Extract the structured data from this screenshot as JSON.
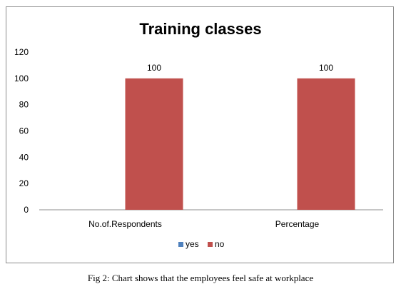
{
  "chart_data": {
    "type": "bar",
    "title": "Training classes",
    "categories": [
      "No.of.Respondents",
      "Percentage"
    ],
    "series": [
      {
        "name": "yes",
        "values": [
          0,
          0
        ],
        "color": "#4f81bd"
      },
      {
        "name": "no",
        "values": [
          100,
          100
        ],
        "color": "#c0504d"
      }
    ],
    "ylim": [
      0,
      120
    ],
    "yticks": [
      0,
      20,
      40,
      60,
      80,
      100,
      120
    ],
    "data_labels": [
      "100",
      "100"
    ],
    "legend": "bottom",
    "grid": false
  },
  "caption": "Fig 2:  Chart shows that the employees feel safe at workplace"
}
